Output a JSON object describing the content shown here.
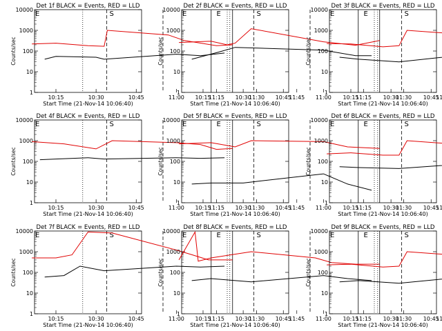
{
  "chart_data": {
    "type": "line",
    "time_ticks": [
      "10:15",
      "10:30",
      "10:45",
      "11:00",
      "11:15",
      "11:30",
      "11:45"
    ],
    "y_ticks": [
      "1",
      "10",
      "100",
      "1000",
      "10000"
    ],
    "ylabel": "Counts/sec",
    "xlabel": "Start Time (21-Nov-14 10:06:40)",
    "colors": {
      "events": "#000000",
      "lld": "#e00000"
    },
    "xlim_minutes_after_1000": [
      7,
      47
    ],
    "ylim_log": [
      1,
      10000
    ],
    "event_marks": {
      "dotted": [
        "10:25",
        "11:19"
      ],
      "dashed": [
        "10:34",
        "10:55"
      ],
      "solid": [
        "11:13",
        "11:21"
      ],
      "labels": [
        {
          "text": "E",
          "at": "10:06"
        },
        {
          "text": "S",
          "at": "10:35"
        },
        {
          "text": "E",
          "at": "11:15"
        }
      ]
    },
    "panels": [
      {
        "title": "Det 1f BLACK = Events, RED = LLD",
        "lld": [
          [
            10.1,
            220
          ],
          [
            10.25,
            240
          ],
          [
            10.45,
            180
          ],
          [
            10.55,
            170
          ],
          [
            10.57,
            1000
          ],
          [
            10.95,
            600
          ],
          [
            11.05,
            320
          ],
          [
            11.25,
            180
          ],
          [
            11.35,
            200
          ]
        ],
        "events": [
          [
            10.18,
            40
          ],
          [
            10.25,
            55
          ],
          [
            10.5,
            50
          ],
          [
            10.55,
            40
          ],
          [
            11.0,
            70
          ],
          [
            11.15,
            60
          ],
          [
            11.3,
            80
          ]
        ]
      },
      {
        "title": "Det 2f BLACK = Events, RED = LLD",
        "lld": [
          [
            10.1,
            260
          ],
          [
            10.3,
            300
          ],
          [
            10.4,
            200
          ],
          [
            10.45,
            240
          ],
          [
            10.55,
            1200
          ],
          [
            11.0,
            280
          ],
          [
            11.2,
            190
          ],
          [
            11.35,
            320
          ]
        ],
        "events": [
          [
            10.18,
            40
          ],
          [
            10.35,
            90
          ],
          [
            10.45,
            150
          ],
          [
            11.0,
            110
          ],
          [
            11.2,
            60
          ],
          [
            11.3,
            60
          ]
        ]
      },
      {
        "title": "Det 3f BLACK = Events, RED = LLD",
        "lld": [
          [
            10.1,
            230
          ],
          [
            10.25,
            220
          ],
          [
            10.45,
            160
          ],
          [
            10.55,
            180
          ],
          [
            10.6,
            1000
          ],
          [
            11.0,
            600
          ],
          [
            11.1,
            180
          ],
          [
            11.3,
            220
          ]
        ],
        "events": [
          [
            10.18,
            50
          ],
          [
            10.3,
            40
          ],
          [
            10.55,
            30
          ],
          [
            11.0,
            70
          ],
          [
            11.2,
            50
          ],
          [
            11.3,
            40
          ]
        ]
      },
      {
        "title": "Det 4f BLACK = Events, RED = LLD",
        "lld": [
          [
            10.1,
            900
          ],
          [
            10.3,
            700
          ],
          [
            10.5,
            400
          ],
          [
            10.6,
            1000
          ],
          [
            11.0,
            800
          ],
          [
            11.15,
            650
          ],
          [
            11.25,
            380
          ],
          [
            11.35,
            420
          ]
        ],
        "events": [
          [
            10.15,
            120
          ],
          [
            10.25,
            130
          ],
          [
            10.45,
            150
          ],
          [
            10.55,
            130
          ],
          [
            11.0,
            150
          ],
          [
            11.15,
            140
          ],
          [
            11.3,
            150
          ]
        ]
      },
      {
        "title": "Det 5f BLACK = Events, RED = LLD",
        "lld": [
          [
            10.1,
            700
          ],
          [
            10.3,
            800
          ],
          [
            10.45,
            500
          ],
          [
            10.55,
            1000
          ],
          [
            11.0,
            900
          ],
          [
            11.15,
            500
          ],
          [
            11.35,
            420
          ]
        ],
        "events": [
          [
            10.18,
            8
          ],
          [
            10.3,
            9
          ],
          [
            10.5,
            9
          ],
          [
            10.55,
            10
          ],
          [
            11.0,
            25
          ],
          [
            11.15,
            8
          ],
          [
            11.3,
            4
          ]
        ]
      },
      {
        "title": "Det 6f BLACK = Events, RED = LLD",
        "lld": [
          [
            10.1,
            230
          ],
          [
            10.25,
            260
          ],
          [
            10.45,
            200
          ],
          [
            10.55,
            200
          ],
          [
            10.6,
            1000
          ],
          [
            11.0,
            600
          ],
          [
            11.1,
            300
          ],
          [
            11.25,
            210
          ],
          [
            11.35,
            280
          ]
        ],
        "events": [
          [
            10.18,
            55
          ],
          [
            10.3,
            50
          ],
          [
            10.55,
            45
          ],
          [
            11.0,
            80
          ],
          [
            11.15,
            60
          ],
          [
            11.3,
            120
          ],
          [
            11.35,
            30
          ]
        ]
      },
      {
        "title": "Det 7f BLACK = Events, RED = LLD",
        "lld": [
          [
            10.1,
            500
          ],
          [
            10.25,
            500
          ],
          [
            10.35,
            700
          ],
          [
            10.45,
            9000
          ],
          [
            10.6,
            8000
          ],
          [
            11.0,
            1200
          ],
          [
            11.1,
            700
          ],
          [
            11.2,
            400
          ],
          [
            11.35,
            400
          ]
        ],
        "events": [
          [
            10.18,
            60
          ],
          [
            10.3,
            70
          ],
          [
            10.4,
            200
          ],
          [
            10.55,
            120
          ],
          [
            11.0,
            200
          ],
          [
            11.15,
            180
          ],
          [
            11.3,
            200
          ]
        ]
      },
      {
        "title": "Det 8f BLACK = Events, RED = LLD",
        "lld": [
          [
            10.1,
            400
          ],
          [
            10.2,
            9000
          ],
          [
            10.22,
            350
          ],
          [
            10.3,
            500
          ],
          [
            10.55,
            1000
          ],
          [
            10.95,
            500
          ],
          [
            11.05,
            300
          ],
          [
            11.2,
            250
          ],
          [
            11.35,
            250
          ]
        ],
        "events": [
          [
            10.18,
            40
          ],
          [
            10.3,
            50
          ],
          [
            10.55,
            35
          ],
          [
            11.0,
            70
          ],
          [
            11.15,
            50
          ],
          [
            11.3,
            40
          ]
        ]
      },
      {
        "title": "Det 9f BLACK = Events, RED = LLD",
        "lld": [
          [
            10.1,
            230
          ],
          [
            10.25,
            250
          ],
          [
            10.45,
            180
          ],
          [
            10.55,
            200
          ],
          [
            10.6,
            1000
          ],
          [
            11.0,
            600
          ],
          [
            11.1,
            260
          ],
          [
            11.25,
            230
          ],
          [
            11.35,
            260
          ]
        ],
        "events": [
          [
            10.18,
            35
          ],
          [
            10.3,
            40
          ],
          [
            10.55,
            30
          ],
          [
            11.0,
            65
          ],
          [
            11.15,
            50
          ],
          [
            11.25,
            150
          ],
          [
            11.35,
            25
          ]
        ]
      }
    ]
  }
}
